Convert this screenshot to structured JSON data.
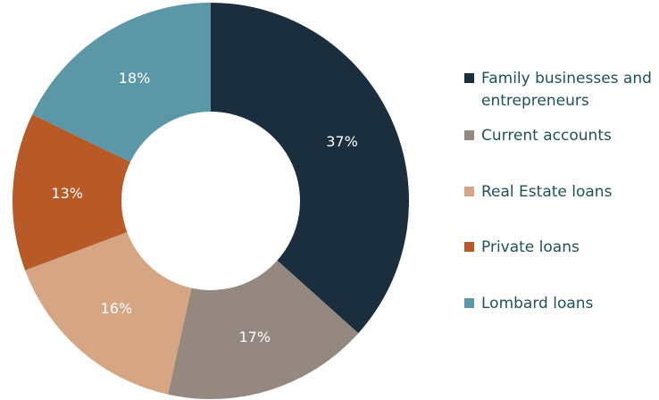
{
  "chart_data": {
    "type": "donut",
    "categories": [
      "Family businesses and entrepreneurs",
      "Current accounts",
      "Real Estate loans",
      "Private loans",
      "Lombard loans"
    ],
    "values": [
      37,
      17,
      16,
      13,
      18
    ],
    "value_labels": [
      "37%",
      "17%",
      "16%",
      "13%",
      "18%"
    ],
    "colors": [
      "#1b2e3e",
      "#958880",
      "#d6a583",
      "#b85a27",
      "#5b97a6"
    ],
    "legend": "right"
  }
}
